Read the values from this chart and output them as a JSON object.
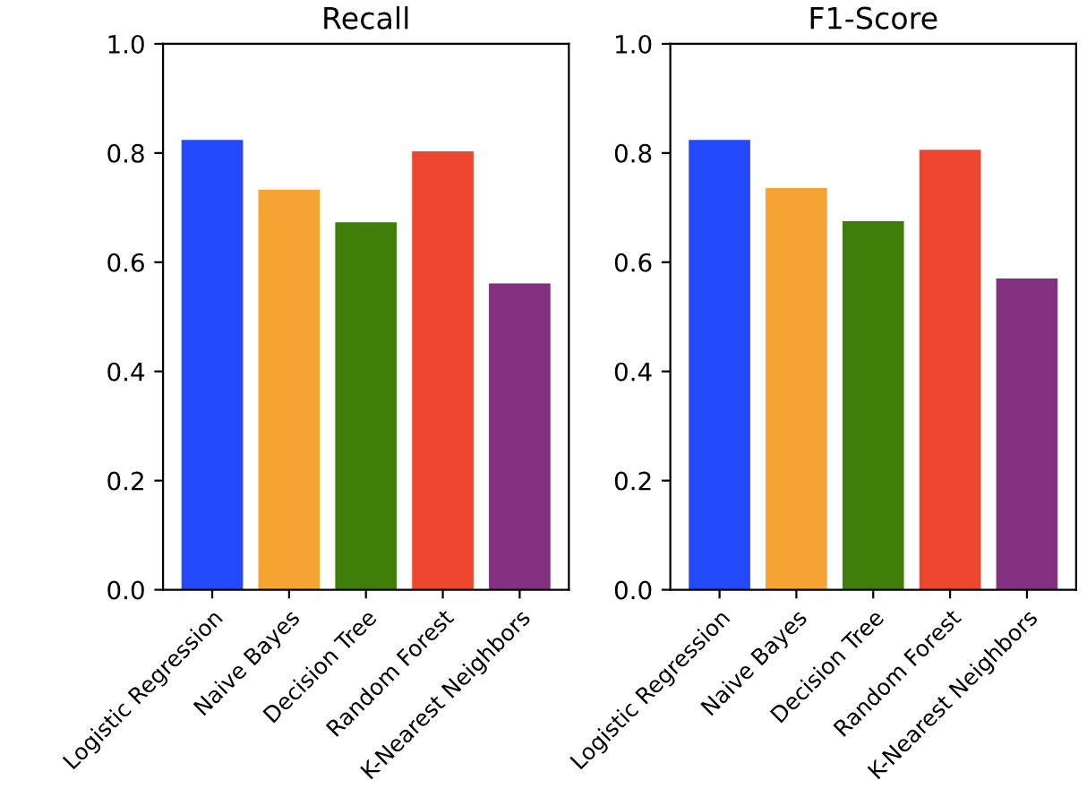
{
  "chart_data": [
    {
      "type": "bar",
      "title": "Recall",
      "categories": [
        "Logistic Regression",
        "Naive Bayes",
        "Decision Tree",
        "Random Forest",
        "K-Nearest Neighbors"
      ],
      "values": [
        0.824,
        0.733,
        0.673,
        0.803,
        0.561
      ],
      "colors": [
        "#2349fb",
        "#f5a431",
        "#3e7e09",
        "#ee4730",
        "#83307f"
      ],
      "ylim": [
        0,
        1
      ],
      "yticks": [
        {
          "value": 0,
          "label": "0.0"
        },
        {
          "value": 0.2,
          "label": "0.2"
        },
        {
          "value": 0.4,
          "label": "0.4"
        },
        {
          "value": 0.6,
          "label": "0.6"
        },
        {
          "value": 0.8,
          "label": "0.8"
        },
        {
          "value": 1,
          "label": "1.0"
        }
      ],
      "grid": false,
      "legend": false
    },
    {
      "type": "bar",
      "title": "F1-Score",
      "categories": [
        "Logistic Regression",
        "Naive Bayes",
        "Decision Tree",
        "Random Forest",
        "K-Nearest Neighbors"
      ],
      "values": [
        0.824,
        0.736,
        0.675,
        0.806,
        0.57
      ],
      "colors": [
        "#2349fb",
        "#f5a431",
        "#3e7e09",
        "#ee4730",
        "#83307f"
      ],
      "ylim": [
        0,
        1
      ],
      "yticks": [
        {
          "value": 0,
          "label": "0.0"
        },
        {
          "value": 0.2,
          "label": "0.2"
        },
        {
          "value": 0.4,
          "label": "0.4"
        },
        {
          "value": 0.6,
          "label": "0.6"
        },
        {
          "value": 0.8,
          "label": "0.8"
        },
        {
          "value": 1,
          "label": "1.0"
        }
      ],
      "grid": false,
      "legend": false
    }
  ]
}
